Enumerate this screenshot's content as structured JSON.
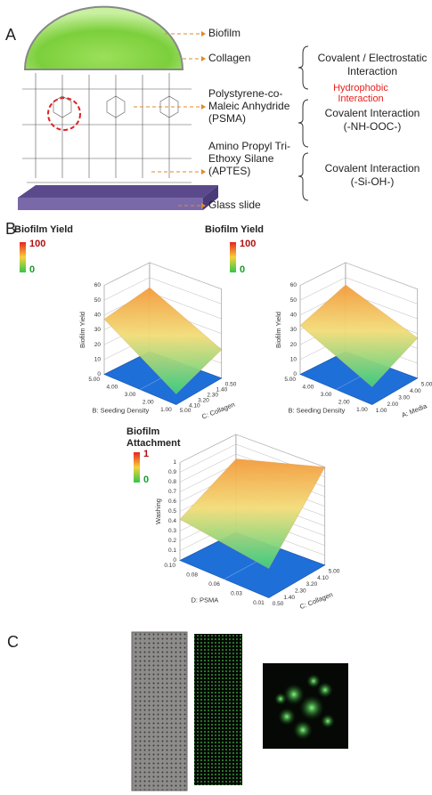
{
  "panel_a": {
    "label": "A",
    "layers": [
      [
        "Biofilm"
      ],
      [
        "Collagen"
      ],
      [
        "Polystyrene-co-",
        "Maleic Anhydride",
        "(PSMA)"
      ],
      [
        "Amino Propyl Tri-",
        "Ethoxy Silane",
        "(APTES)"
      ],
      [
        "Glass slide"
      ]
    ],
    "interactions": [
      [
        "Covalent / Electrostatic",
        "Interaction"
      ],
      [
        "Hydrophobic",
        "Interaction"
      ],
      [
        "Covalent Interaction",
        "(-NH-OOC-)"
      ],
      [
        "Covalent Interaction",
        "(-Si-OH-)"
      ]
    ]
  },
  "panel_b": {
    "label": "B",
    "plots": [
      {
        "colorbar_title": [
          "Biofilm Yield"
        ],
        "colorbar_max": "100",
        "colorbar_min": "0",
        "z_label": "Biofilm Yield",
        "z_ticks": [
          "0",
          "10",
          "20",
          "30",
          "40",
          "50",
          "60"
        ],
        "y_label": "B: Seeding Density",
        "y_ticks": [
          "1.00",
          "2.00",
          "3.00",
          "4.00",
          "5.00"
        ],
        "x_label": "C: Collagen",
        "x_ticks": [
          "0.50",
          "1.40",
          "2.30",
          "3.20",
          "4.10",
          "5.00"
        ]
      },
      {
        "colorbar_title": [
          "Biofilm Yield"
        ],
        "colorbar_max": "100",
        "colorbar_min": "0",
        "z_label": "Biofilm Yield",
        "z_ticks": [
          "0",
          "10",
          "20",
          "30",
          "40",
          "50",
          "60"
        ],
        "y_label": "B: Seeding Density",
        "y_ticks": [
          "1.00",
          "2.00",
          "3.00",
          "4.00",
          "5.00"
        ],
        "x_label": "A: Media",
        "x_ticks": [
          "1.00",
          "2.00",
          "3.00",
          "4.00",
          "5.00"
        ]
      },
      {
        "colorbar_title": [
          "Biofilm",
          "Attachment"
        ],
        "colorbar_max": "1",
        "colorbar_min": "0",
        "z_label": "Washing",
        "z_ticks": [
          "0",
          "0.1",
          "0.2",
          "0.3",
          "0.4",
          "0.5",
          "0.6",
          "0.7",
          "0.8",
          "0.9",
          "1"
        ],
        "y_label": "D: PSMA",
        "y_ticks": [
          "0.01",
          "0.03",
          "0.06",
          "0.08",
          "0.10"
        ],
        "x_label": "C: Collagen",
        "x_ticks": [
          "0.50",
          "1.40",
          "2.30",
          "3.20",
          "4.10",
          "5.00"
        ]
      }
    ]
  },
  "panel_c": {
    "label": "C"
  }
}
